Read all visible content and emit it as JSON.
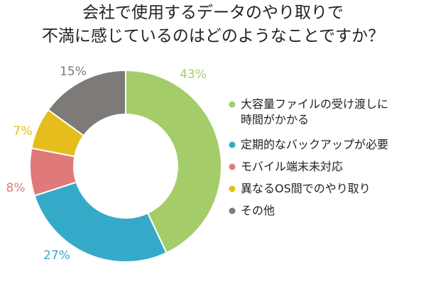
{
  "chart_data": {
    "type": "pie",
    "title_lines": [
      "会社で使用するデータのやり取りで",
      "不満に感じているのはどのようなことですか？"
    ],
    "categories": [
      "大容量ファイルの受け渡しに時間がかかる",
      "定期的なバックアップが必要",
      "モバイル端末未対応",
      "異なるOS間でのやり取り",
      "その他"
    ],
    "values": [
      43,
      27,
      8,
      7,
      15
    ],
    "value_labels": [
      "43%",
      "27%",
      "8%",
      "7%",
      "15%"
    ],
    "colors": [
      "#a4cd6a",
      "#35aac8",
      "#e07a7a",
      "#e5bd1c",
      "#7d7a78"
    ],
    "donut": true,
    "start": "top, clockwise",
    "legend": {
      "position": "right",
      "items": [
        {
          "lines": [
            "大容量ファイルの受け渡しに",
            "時間がかかる"
          ]
        },
        {
          "lines": [
            "定期的なバックアップが必要"
          ]
        },
        {
          "lines": [
            "モバイル端末未対応"
          ]
        },
        {
          "lines": [
            "異なるOS間でのやり取り"
          ]
        },
        {
          "lines": [
            "その他"
          ]
        }
      ]
    }
  }
}
